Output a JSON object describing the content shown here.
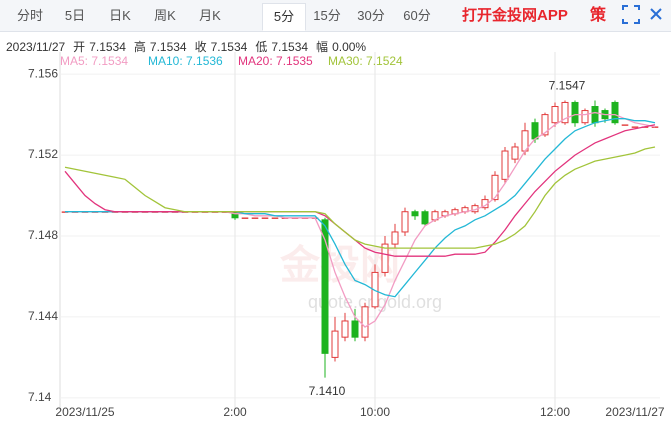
{
  "tabs": [
    "分时",
    "5日",
    "日K",
    "周K",
    "月K",
    "5分",
    "15分",
    "30分",
    "60分"
  ],
  "selected_tab": 5,
  "app_link": "打开金投网APP",
  "strategy_icon": "策",
  "info": {
    "date": "2023/11/27",
    "items": [
      [
        "开",
        "7.1534"
      ],
      [
        "高",
        "7.1534"
      ],
      [
        "收",
        "7.1534"
      ],
      [
        "低",
        "7.1534"
      ],
      [
        "幅",
        "0.00%"
      ]
    ]
  },
  "watermark": {
    "brand": "金投网",
    "url": "quote.cngold.org"
  },
  "chart_data": {
    "type": "candlestick",
    "ylim": [
      7.1394,
      7.1566
    ],
    "yticks": [
      7.14,
      7.144,
      7.148,
      7.152,
      7.156
    ],
    "up_color": "#e23b3b",
    "down_color": "#1db31f",
    "categories": [
      null,
      null,
      "2023/11/25",
      null,
      null,
      null,
      null,
      null,
      null,
      null,
      null,
      null,
      null,
      null,
      null,
      null,
      null,
      "2:00",
      null,
      null,
      null,
      null,
      null,
      null,
      null,
      null,
      null,
      null,
      null,
      null,
      null,
      "10:00",
      null,
      null,
      null,
      null,
      null,
      null,
      null,
      null,
      null,
      null,
      null,
      null,
      null,
      null,
      null,
      null,
      null,
      "12:00",
      null,
      null,
      null,
      null,
      null,
      null,
      null,
      "2023/11/27",
      null,
      null
    ],
    "ohlc": [
      [
        7.1492,
        7.1492,
        7.1492,
        7.1492
      ],
      [
        7.1492,
        7.1492,
        7.1492,
        7.1492
      ],
      [
        7.1492,
        7.1492,
        7.1492,
        7.1492
      ],
      [
        7.1492,
        7.1492,
        7.1492,
        7.1492
      ],
      [
        7.1492,
        7.1492,
        7.1492,
        7.1492
      ],
      [
        7.1492,
        7.1492,
        7.1492,
        7.1492
      ],
      [
        7.1492,
        7.1492,
        7.1492,
        7.1492
      ],
      [
        7.1492,
        7.1492,
        7.1492,
        7.1492
      ],
      [
        7.1492,
        7.1492,
        7.1492,
        7.1492
      ],
      [
        7.1492,
        7.1492,
        7.1492,
        7.1492
      ],
      [
        7.1492,
        7.1492,
        7.1492,
        7.1492
      ],
      [
        7.1492,
        7.1492,
        7.1492,
        7.1492
      ],
      [
        7.1492,
        7.1492,
        7.1492,
        7.1492
      ],
      [
        7.1492,
        7.1492,
        7.1492,
        7.1492
      ],
      [
        7.1492,
        7.1492,
        7.1492,
        7.1492
      ],
      [
        7.1492,
        7.1492,
        7.1492,
        7.1492
      ],
      [
        7.1492,
        7.1492,
        7.1492,
        7.1492
      ],
      [
        7.1492,
        7.1492,
        7.1488,
        7.1489
      ],
      [
        7.1489,
        7.1489,
        7.1489,
        7.1489
      ],
      [
        7.1489,
        7.1489,
        7.1489,
        7.1489
      ],
      [
        7.1489,
        7.1489,
        7.1489,
        7.1489
      ],
      [
        7.1489,
        7.1489,
        7.1489,
        7.1489
      ],
      [
        7.1489,
        7.1489,
        7.1489,
        7.1489
      ],
      [
        7.1489,
        7.1489,
        7.1489,
        7.1489
      ],
      [
        7.1489,
        7.1489,
        7.1489,
        7.1489
      ],
      [
        7.1489,
        7.1489,
        7.1489,
        7.1489
      ],
      [
        7.1488,
        7.1489,
        7.141,
        7.1422
      ],
      [
        7.142,
        7.144,
        7.1418,
        7.1433
      ],
      [
        7.143,
        7.1442,
        7.1428,
        7.1438
      ],
      [
        7.1438,
        7.1444,
        7.1428,
        7.143
      ],
      [
        7.143,
        7.1447,
        7.1428,
        7.1445
      ],
      [
        7.1445,
        7.1466,
        7.1444,
        7.1462
      ],
      [
        7.1462,
        7.148,
        7.146,
        7.1476
      ],
      [
        7.1476,
        7.1486,
        7.1474,
        7.1482
      ],
      [
        7.1482,
        7.1494,
        7.148,
        7.1492
      ],
      [
        7.1492,
        7.1493,
        7.1488,
        7.149
      ],
      [
        7.1492,
        7.1493,
        7.1485,
        7.1486
      ],
      [
        7.1488,
        7.1493,
        7.1487,
        7.1492
      ],
      [
        7.149,
        7.1493,
        7.1489,
        7.1492
      ],
      [
        7.1491,
        7.1494,
        7.149,
        7.1493
      ],
      [
        7.1492,
        7.1495,
        7.1491,
        7.1494
      ],
      [
        7.1492,
        7.1496,
        7.1491,
        7.1495
      ],
      [
        7.1494,
        7.15,
        7.1493,
        7.1498
      ],
      [
        7.1498,
        7.1512,
        7.1497,
        7.151
      ],
      [
        7.1508,
        7.1524,
        7.1506,
        7.1522
      ],
      [
        7.1518,
        7.1526,
        7.1516,
        7.1524
      ],
      [
        7.1522,
        7.1536,
        7.152,
        7.1532
      ],
      [
        7.1536,
        7.1538,
        7.1526,
        7.1528
      ],
      [
        7.153,
        7.1541,
        7.1529,
        7.154
      ],
      [
        7.1536,
        7.1546,
        7.1534,
        7.1544
      ],
      [
        7.1536,
        7.1547,
        7.1535,
        7.1546
      ],
      [
        7.1546,
        7.1547,
        7.1534,
        7.1536
      ],
      [
        7.1536,
        7.1543,
        7.1535,
        7.1542
      ],
      [
        7.1544,
        7.1547,
        7.1534,
        7.1536
      ],
      [
        7.1542,
        7.1543,
        7.1536,
        7.1538
      ],
      [
        7.1546,
        7.1547,
        7.1535,
        7.1536
      ],
      [
        7.1535,
        7.1535,
        7.1535,
        7.1535
      ],
      [
        7.1534,
        7.1534,
        7.1534,
        7.1534
      ],
      [
        7.1534,
        7.1534,
        7.1534,
        7.1534
      ],
      [
        7.1534,
        7.1534,
        7.1534,
        7.1534
      ]
    ],
    "annotations": [
      7.1547,
      {
        "value": 7.141,
        "label": "7.1410"
      }
    ],
    "series": [
      {
        "name": "MA5: 7.1534",
        "color": "#f29cc3",
        "values": [
          7.1492,
          7.1492,
          7.1492,
          7.1492,
          7.1492,
          7.1492,
          7.1492,
          7.1492,
          7.1492,
          7.1492,
          7.1492,
          7.1492,
          7.1492,
          7.1492,
          7.1492,
          7.1492,
          7.1492,
          7.1491,
          7.1491,
          7.149,
          7.149,
          7.149,
          7.1489,
          7.1489,
          7.1489,
          7.1489,
          7.1478,
          7.1462,
          7.145,
          7.144,
          7.1435,
          7.1438,
          7.1446,
          7.1458,
          7.1468,
          7.1478,
          7.1485,
          7.1488,
          7.149,
          7.1491,
          7.1492,
          7.1493,
          7.1495,
          7.1499,
          7.1506,
          7.1514,
          7.1522,
          7.1528,
          7.1531,
          7.1535,
          7.1538,
          7.154,
          7.154,
          7.1541,
          7.154,
          7.154,
          7.1538,
          7.1536,
          7.1535,
          7.1534
        ]
      },
      {
        "name": "MA10: 7.1536",
        "color": "#23b8d6",
        "values": [
          7.1492,
          7.1492,
          7.1492,
          7.1492,
          7.1492,
          7.1492,
          7.1492,
          7.1492,
          7.1492,
          7.1492,
          7.1492,
          7.1492,
          7.1492,
          7.1492,
          7.1492,
          7.1492,
          7.1492,
          7.1492,
          7.1491,
          7.1491,
          7.1491,
          7.149,
          7.149,
          7.149,
          7.149,
          7.149,
          7.1485,
          7.1476,
          7.1466,
          7.1458,
          7.1456,
          7.1453,
          7.1451,
          7.145,
          7.1456,
          7.1462,
          7.1468,
          7.1474,
          7.1479,
          7.1483,
          7.1485,
          7.1488,
          7.149,
          7.1493,
          7.1496,
          7.15,
          7.1506,
          7.1512,
          7.1518,
          7.1523,
          7.1528,
          7.1532,
          7.1534,
          7.1536,
          7.1537,
          7.1538,
          7.1538,
          7.1537,
          7.1537,
          7.1536
        ]
      },
      {
        "name": "MA20: 7.1535",
        "color": "#e2347d",
        "values": [
          7.1512,
          7.1506,
          7.15,
          7.1496,
          7.1493,
          7.1492,
          7.1492,
          7.1492,
          7.1492,
          7.1492,
          7.1492,
          7.1492,
          7.1492,
          7.1492,
          7.1492,
          7.1492,
          7.1492,
          7.1492,
          7.1492,
          7.1492,
          7.1492,
          7.1492,
          7.1492,
          7.1492,
          7.1492,
          7.1492,
          7.149,
          7.1486,
          7.1482,
          7.1478,
          7.1474,
          7.1472,
          7.1471,
          7.147,
          7.147,
          7.147,
          7.147,
          7.147,
          7.147,
          7.1471,
          7.1471,
          7.1471,
          7.1472,
          7.1477,
          7.1483,
          7.149,
          7.1496,
          7.1502,
          7.1507,
          7.1512,
          7.1516,
          7.152,
          7.1523,
          7.1526,
          7.1528,
          7.153,
          7.1532,
          7.1533,
          7.1534,
          7.1535
        ]
      },
      {
        "name": "MA30: 7.1524",
        "color": "#a2c43a",
        "values": [
          7.1514,
          7.1513,
          7.1512,
          7.1511,
          7.151,
          7.1509,
          7.1508,
          7.1504,
          7.15,
          7.1497,
          7.1494,
          7.1493,
          7.1492,
          7.1492,
          7.1492,
          7.1492,
          7.1492,
          7.1492,
          7.1492,
          7.1492,
          7.1492,
          7.1492,
          7.1492,
          7.1492,
          7.1492,
          7.1492,
          7.1491,
          7.1486,
          7.1482,
          7.1478,
          7.1476,
          7.1475,
          7.1474,
          7.1474,
          7.1474,
          7.1474,
          7.1474,
          7.1474,
          7.1474,
          7.1474,
          7.1474,
          7.1474,
          7.1475,
          7.1476,
          7.1478,
          7.1481,
          7.1485,
          7.1492,
          7.15,
          7.1506,
          7.151,
          7.1513,
          7.1515,
          7.1517,
          7.1518,
          7.1519,
          7.152,
          7.1521,
          7.1523,
          7.1524
        ]
      }
    ]
  }
}
